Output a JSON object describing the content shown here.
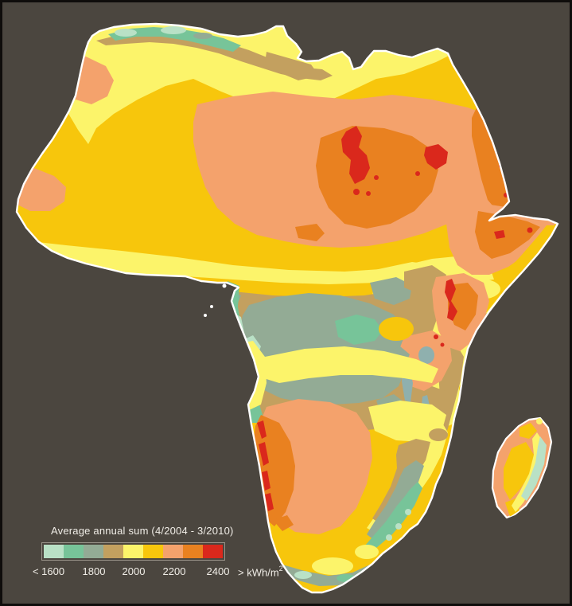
{
  "palette": {
    "background": "#4b463f",
    "frame": "#0f0d0b",
    "coastline": "#ffffff",
    "mint": "#b9e1c6",
    "green": "#77c499",
    "graygreen": "#93ab95",
    "tan": "#c3a05f",
    "lightyellow": "#fcf46a",
    "gold": "#f7c60c",
    "salmon": "#f4a26c",
    "orange": "#e98120",
    "red": "#da281c",
    "lake": "#8fb0ae",
    "legend_text": "#f0ede7",
    "legend_border": "#9a948a"
  },
  "legend": {
    "title": "Average annual sum (4/2004 - 3/2010)",
    "labels": [
      "< 1600",
      "1800",
      "2000",
      "2200",
      "2400"
    ],
    "unit": "> kWh/m",
    "unit_exponent": "2",
    "swatches": [
      {
        "name": "lt-1600",
        "color": "#b9e1c6"
      },
      {
        "name": "1700",
        "color": "#77c499"
      },
      {
        "name": "1800",
        "color": "#93ab95"
      },
      {
        "name": "1900",
        "color": "#c3a05f"
      },
      {
        "name": "2000",
        "color": "#fcf46a"
      },
      {
        "name": "2100",
        "color": "#f7c60c"
      },
      {
        "name": "2200",
        "color": "#f4a26c"
      },
      {
        "name": "2300",
        "color": "#e98120"
      },
      {
        "name": "gt-2400",
        "color": "#da281c"
      }
    ]
  }
}
